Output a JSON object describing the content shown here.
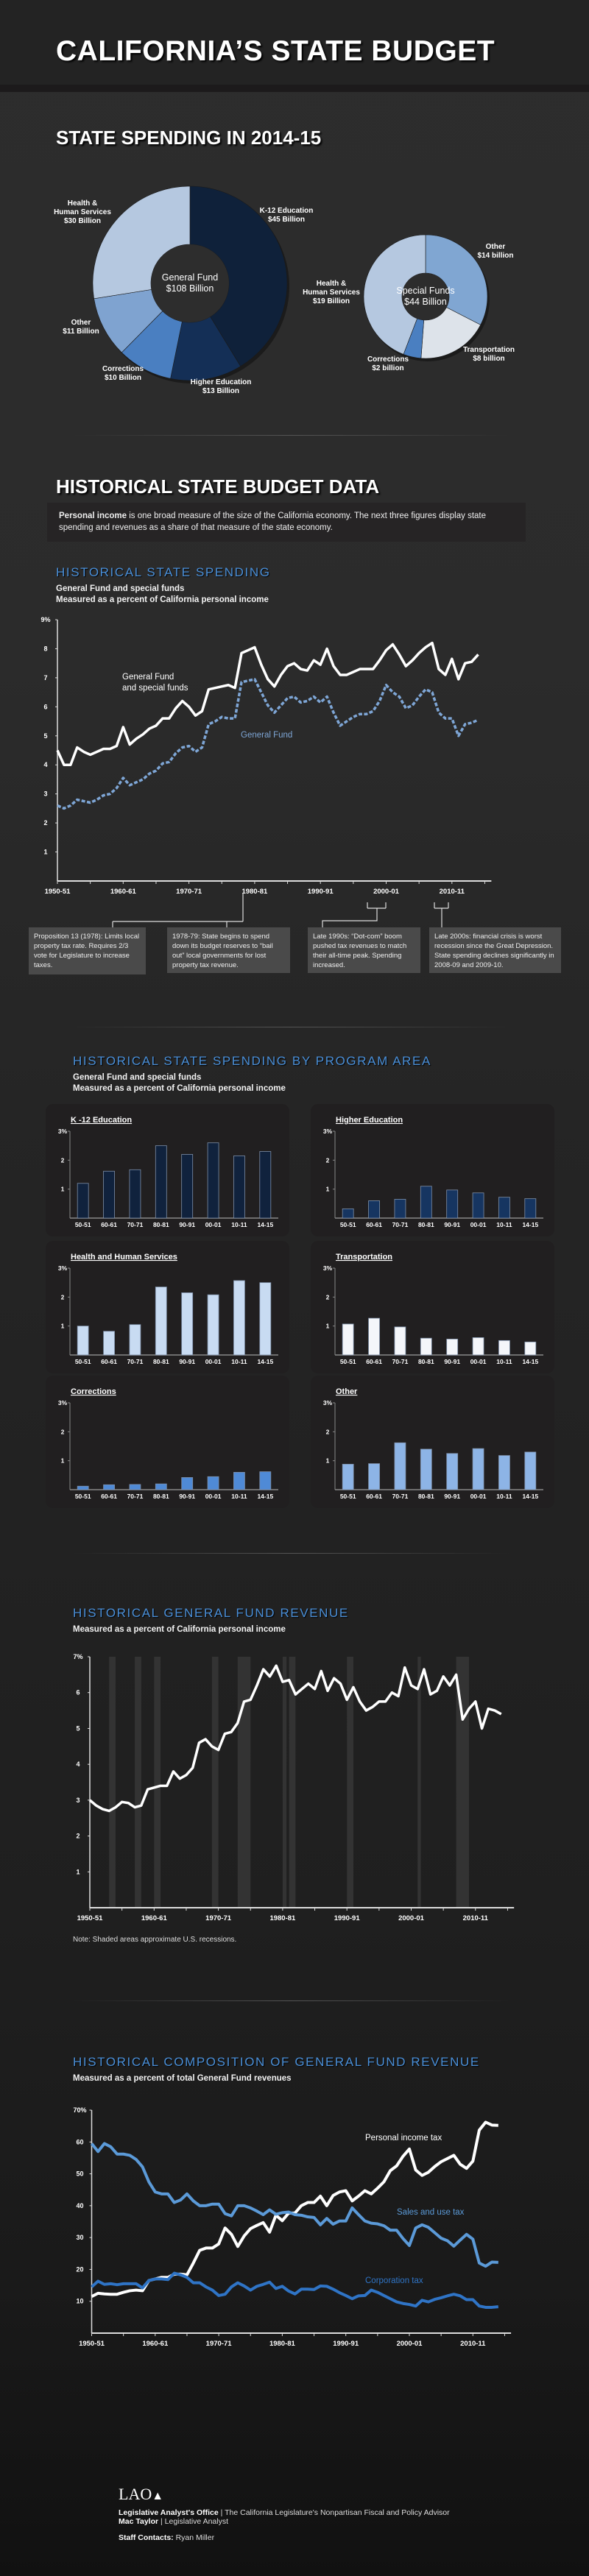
{
  "header": {
    "title": "CALIFORNIA’S STATE BUDGET"
  },
  "spending": {
    "title": "STATE SPENDING IN 2014-15"
  },
  "historical": {
    "title": "HISTORICAL STATE BUDGET DATA",
    "intro_bold": "Personal income",
    "intro_rest": " is one broad measure of the size of the California economy. The next three figures display state spending and revenues as a share of that measure of the state economy."
  },
  "hist_spending": {
    "title": "HISTORICAL STATE SPENDING",
    "subtitle1": "General Fund and special funds",
    "subtitle2": "Measured as a percent of California personal income"
  },
  "annotations": [
    "Proposition 13 (1978): Limits local property tax rate. Requires 2/3 vote for Legislature to increase taxes.",
    "1978-79: State begins to spend down its budget reserves to “bail out” local governments for lost property tax revenue.",
    "Late 1990s: “Dot-com” boom pushed tax revenues to match their all-time peak. Spending increased.",
    "Late 2000s: financial crisis is worst recession since the Great Depression. State spending declines significantly in 2008-09 and 2009-10."
  ],
  "program": {
    "title": "HISTORICAL STATE SPENDING BY PROGRAM AREA",
    "subtitle1": "General Fund and special funds",
    "subtitle2": "Measured as a percent of California personal income"
  },
  "revenue": {
    "title": "HISTORICAL GENERAL FUND REVENUE",
    "subtitle": "Measured as a percent of California personal income",
    "note": "Note: Shaded areas approximate U.S. recessions."
  },
  "composition": {
    "title": "HISTORICAL COMPOSITION OF GENERAL FUND REVENUE",
    "subtitle": "Measured as a percent of total General Fund revenues"
  },
  "footer": {
    "logo": "LAO",
    "org": "Legislative Analyst's Office",
    "org_desc": " | The California Legislature's Nonpartisan Fiscal and Policy Advisor",
    "analyst": "Mac Taylor",
    "analyst_role": " | Legislative Analyst",
    "staff_label": "Staff Contacts:",
    "staff_name": " Ryan Miller"
  },
  "chart_data": [
    {
      "type": "pie",
      "center_label": [
        "General Fund",
        "$108 Billion"
      ],
      "slices": [
        {
          "label": "K-12 Education",
          "value_label": "$45 Billion",
          "value": 45,
          "color": "#0f213a"
        },
        {
          "label": "Higher Education",
          "value_label": "$13 Billion",
          "value": 13,
          "color": "#142f56"
        },
        {
          "label": "Corrections",
          "value_label": "$10 Billion",
          "value": 10,
          "color": "#4a7fc1"
        },
        {
          "label": "Other",
          "value_label": "$11 Billion",
          "value": 11,
          "color": "#7fa3d0"
        },
        {
          "label": "Health & Human Services",
          "value_label": "$30 Billion",
          "value": 30,
          "color": "#b5c8e0"
        }
      ]
    },
    {
      "type": "pie",
      "center_label": [
        "Special Funds",
        "$44 Billion"
      ],
      "slices": [
        {
          "label": "Other",
          "value_label": "$14 billion",
          "value": 14,
          "color": "#80a6d2"
        },
        {
          "label": "Transportation",
          "value_label": "$8 billion",
          "value": 8,
          "color": "#dde3ea"
        },
        {
          "label": "Corrections",
          "value_label": "$2 billion",
          "value": 2,
          "color": "#4a7fc1"
        },
        {
          "label": "Health & Human Services",
          "value_label": "$19 Billion",
          "value": 19,
          "color": "#b5c8e0"
        }
      ]
    },
    {
      "type": "line",
      "ylim": [
        0,
        9
      ],
      "yticks": [
        "1",
        "2",
        "3",
        "4",
        "5",
        "6",
        "7",
        "8",
        "9%"
      ],
      "xticks": [
        "1950-51",
        "1960-61",
        "1970-71",
        "1980-81",
        "1990-91",
        "2000-01",
        "2010-11"
      ],
      "x": [
        1950,
        1951,
        1952,
        1953,
        1954,
        1955,
        1956,
        1957,
        1958,
        1959,
        1960,
        1961,
        1962,
        1963,
        1964,
        1965,
        1966,
        1967,
        1968,
        1969,
        1970,
        1971,
        1972,
        1973,
        1974,
        1975,
        1976,
        1977,
        1978,
        1979,
        1980,
        1981,
        1982,
        1983,
        1984,
        1985,
        1986,
        1987,
        1988,
        1989,
        1990,
        1991,
        1992,
        1993,
        1994,
        1995,
        1996,
        1997,
        1998,
        1999,
        2000,
        2001,
        2002,
        2003,
        2004,
        2005,
        2006,
        2007,
        2008,
        2009,
        2010,
        2011,
        2012,
        2013,
        2014
      ],
      "series": [
        {
          "name": "General Fund and special funds",
          "color": "#ffffff",
          "values": [
            4.5,
            4.0,
            4.0,
            4.6,
            4.45,
            4.35,
            4.45,
            4.55,
            4.55,
            4.65,
            5.3,
            4.7,
            4.9,
            5.05,
            5.25,
            5.35,
            5.6,
            5.6,
            5.95,
            6.2,
            6.0,
            5.7,
            5.85,
            6.6,
            6.65,
            6.7,
            6.75,
            6.65,
            7.85,
            7.95,
            8.05,
            7.45,
            6.95,
            6.7,
            7.1,
            7.4,
            7.5,
            7.3,
            7.25,
            7.6,
            7.45,
            8.0,
            7.4,
            7.1,
            7.1,
            7.2,
            7.3,
            7.3,
            7.3,
            7.6,
            7.95,
            8.15,
            7.8,
            7.4,
            7.6,
            7.85,
            8.05,
            8.2,
            7.3,
            7.1,
            7.65,
            6.95,
            7.5,
            7.55,
            7.8
          ]
        },
        {
          "name": "General Fund",
          "color": "#7ea6d6",
          "values": [
            2.6,
            2.5,
            2.6,
            2.8,
            2.75,
            2.7,
            2.8,
            2.95,
            3.0,
            3.2,
            3.55,
            3.3,
            3.4,
            3.5,
            3.7,
            3.8,
            4.05,
            4.1,
            4.4,
            4.6,
            4.65,
            4.45,
            4.6,
            5.4,
            5.5,
            5.65,
            5.6,
            5.6,
            6.85,
            6.9,
            6.95,
            6.5,
            6.05,
            5.8,
            6.05,
            6.3,
            6.35,
            6.15,
            6.2,
            6.35,
            6.15,
            6.35,
            5.8,
            5.35,
            5.5,
            5.65,
            5.75,
            5.75,
            5.85,
            6.2,
            6.75,
            6.5,
            6.35,
            5.95,
            6.05,
            6.35,
            6.6,
            6.5,
            5.8,
            5.6,
            5.6,
            5.0,
            5.4,
            5.45,
            5.55
          ]
        }
      ]
    },
    {
      "type": "bar",
      "title": "K -12 Education",
      "color": "#10223d",
      "ylim": [
        0,
        3
      ],
      "yticks": [
        "1",
        "2",
        "3%"
      ],
      "categories": [
        "50-51",
        "60-61",
        "70-71",
        "80-81",
        "90-91",
        "00-01",
        "10-11",
        "14-15"
      ],
      "values": [
        1.2,
        1.62,
        1.67,
        2.5,
        2.2,
        2.6,
        2.15,
        2.3
      ]
    },
    {
      "type": "bar",
      "title": "Higher Education",
      "color": "#163561",
      "ylim": [
        0,
        3
      ],
      "yticks": [
        "1",
        "2",
        "3%"
      ],
      "categories": [
        "50-51",
        "60-61",
        "70-71",
        "80-81",
        "90-91",
        "00-01",
        "10-11",
        "14-15"
      ],
      "values": [
        0.32,
        0.6,
        0.65,
        1.1,
        0.97,
        0.87,
        0.72,
        0.67
      ]
    },
    {
      "type": "bar",
      "title": "Health and Human Services",
      "color": "#c8dbf2",
      "ylim": [
        0,
        3
      ],
      "yticks": [
        "1",
        "2",
        "3%"
      ],
      "categories": [
        "50-51",
        "60-61",
        "70-71",
        "80-81",
        "90-91",
        "00-01",
        "10-11",
        "14-15"
      ],
      "values": [
        1.0,
        0.82,
        1.05,
        2.35,
        2.15,
        2.08,
        2.57,
        2.5
      ]
    },
    {
      "type": "bar",
      "title": "Transportation",
      "color": "#f4f6fa",
      "ylim": [
        0,
        3
      ],
      "yticks": [
        "1",
        "2",
        "3%"
      ],
      "categories": [
        "50-51",
        "60-61",
        "70-71",
        "80-81",
        "90-91",
        "00-01",
        "10-11",
        "14-15"
      ],
      "values": [
        1.07,
        1.27,
        0.97,
        0.58,
        0.55,
        0.6,
        0.5,
        0.45
      ]
    },
    {
      "type": "bar",
      "title": "Corrections",
      "color": "#4f8ad6",
      "ylim": [
        0,
        3
      ],
      "yticks": [
        "1",
        "2",
        "3%"
      ],
      "categories": [
        "50-51",
        "60-61",
        "70-71",
        "80-81",
        "90-91",
        "00-01",
        "10-11",
        "14-15"
      ],
      "values": [
        0.12,
        0.17,
        0.18,
        0.2,
        0.42,
        0.45,
        0.6,
        0.62
      ]
    },
    {
      "type": "bar",
      "title": "Other",
      "color": "#8db4e6",
      "ylim": [
        0,
        3
      ],
      "yticks": [
        "1",
        "2",
        "3%"
      ],
      "categories": [
        "50-51",
        "60-61",
        "70-71",
        "80-81",
        "90-91",
        "00-01",
        "10-11",
        "14-15"
      ],
      "values": [
        0.88,
        0.9,
        1.62,
        1.4,
        1.25,
        1.42,
        1.18,
        1.3
      ]
    },
    {
      "type": "line",
      "ylim": [
        0,
        7
      ],
      "yticks": [
        "1",
        "2",
        "3",
        "4",
        "5",
        "6",
        "7%"
      ],
      "xticks": [
        "1950-51",
        "1960-61",
        "1970-71",
        "1980-81",
        "1990-91",
        "2000-01",
        "2010-11"
      ],
      "recessions": [
        [
          1953,
          1954
        ],
        [
          1957,
          1958
        ],
        [
          1960,
          1961
        ],
        [
          1969,
          1970
        ],
        [
          1973,
          1975
        ],
        [
          1980,
          1980.6
        ],
        [
          1981,
          1982
        ],
        [
          1990,
          1991
        ],
        [
          2001,
          2001.5
        ],
        [
          2007,
          2009
        ]
      ],
      "x": [
        1950,
        1951,
        1952,
        1953,
        1954,
        1955,
        1956,
        1957,
        1958,
        1959,
        1960,
        1961,
        1962,
        1963,
        1964,
        1965,
        1966,
        1967,
        1968,
        1969,
        1970,
        1971,
        1972,
        1973,
        1974,
        1975,
        1976,
        1977,
        1978,
        1979,
        1980,
        1981,
        1982,
        1983,
        1984,
        1985,
        1986,
        1987,
        1988,
        1989,
        1990,
        1991,
        1992,
        1993,
        1994,
        1995,
        1996,
        1997,
        1998,
        1999,
        2000,
        2001,
        2002,
        2003,
        2004,
        2005,
        2006,
        2007,
        2008,
        2009,
        2010,
        2011,
        2012,
        2013,
        2014
      ],
      "series": [
        {
          "color": "#ffffff",
          "values": [
            3.0,
            2.85,
            2.75,
            2.7,
            2.8,
            2.95,
            2.92,
            2.8,
            2.85,
            3.3,
            3.35,
            3.4,
            3.4,
            3.8,
            3.6,
            3.7,
            3.9,
            4.6,
            4.7,
            4.5,
            4.4,
            4.85,
            4.9,
            5.15,
            5.75,
            5.8,
            6.2,
            6.65,
            6.45,
            6.75,
            6.3,
            6.35,
            5.95,
            6.1,
            6.25,
            6.1,
            6.6,
            6.05,
            6.4,
            6.25,
            5.8,
            6.15,
            5.75,
            5.5,
            5.6,
            5.75,
            5.75,
            6.0,
            5.9,
            6.7,
            6.2,
            6.1,
            6.65,
            5.95,
            6.05,
            6.45,
            6.2,
            6.5,
            5.25,
            5.55,
            5.75,
            5.0,
            5.55,
            5.5,
            5.4
          ]
        }
      ]
    },
    {
      "type": "line",
      "ylim": [
        0,
        70
      ],
      "yticks": [
        "10",
        "20",
        "30",
        "40",
        "50",
        "60",
        "70%"
      ],
      "xticks": [
        "1950-51",
        "1960-61",
        "1970-71",
        "1980-81",
        "1990-91",
        "2000-01",
        "2010-11"
      ],
      "x": [
        1950,
        1951,
        1952,
        1953,
        1954,
        1955,
        1956,
        1957,
        1958,
        1959,
        1960,
        1961,
        1962,
        1963,
        1964,
        1965,
        1966,
        1967,
        1968,
        1969,
        1970,
        1971,
        1972,
        1973,
        1974,
        1975,
        1976,
        1977,
        1978,
        1979,
        1980,
        1981,
        1982,
        1983,
        1984,
        1985,
        1986,
        1987,
        1988,
        1989,
        1990,
        1991,
        1992,
        1993,
        1994,
        1995,
        1996,
        1997,
        1998,
        1999,
        2000,
        2001,
        2002,
        2003,
        2004,
        2005,
        2006,
        2007,
        2008,
        2009,
        2010,
        2011,
        2012,
        2013,
        2014
      ],
      "series": [
        {
          "name": "Personal income tax",
          "color": "#ffffff",
          "values": [
            11.5,
            12.5,
            12.3,
            12.2,
            12.2,
            12.8,
            13.3,
            13.5,
            13.3,
            16.5,
            17,
            17.5,
            17.5,
            18.5,
            18.5,
            18.3,
            22,
            26,
            26.7,
            26.7,
            28,
            33,
            31,
            27.2,
            30.5,
            32.8,
            33.8,
            34.7,
            31.7,
            37,
            35.3,
            37.7,
            37.7,
            40,
            41,
            41,
            43,
            40,
            43.2,
            44.3,
            44.7,
            41.5,
            43,
            44.7,
            43.7,
            45.5,
            47.5,
            51,
            52.5,
            55.5,
            57.8,
            51.2,
            49.5,
            50.5,
            52.3,
            53.8,
            54.8,
            55.8,
            53,
            51.7,
            54,
            63.7,
            66.2,
            65.3,
            65.2
          ]
        },
        {
          "name": "Sales and use tax",
          "color": "#5b9ad8",
          "values": [
            59.5,
            57,
            59.5,
            58.5,
            56.2,
            56.2,
            55.8,
            54.5,
            52.2,
            47.5,
            44.3,
            43.7,
            43.7,
            41,
            41.8,
            43.7,
            41.5,
            40,
            40,
            40.5,
            40.5,
            37.5,
            36.8,
            40,
            40,
            39.3,
            38.3,
            37.2,
            38.7,
            37.3,
            37.8,
            38,
            37.2,
            37,
            36.5,
            36.3,
            34,
            36,
            34.2,
            35.2,
            35.2,
            39.3,
            37.2,
            35.2,
            34.5,
            34.3,
            33.7,
            32.3,
            32.3,
            29.7,
            27.5,
            33,
            34,
            33.2,
            31.5,
            29.8,
            29,
            27.3,
            29.2,
            31,
            29.5,
            22,
            21,
            22.3,
            22.2
          ]
        },
        {
          "name": "Corporation tax",
          "color": "#2f74c6",
          "values": [
            14.5,
            16.3,
            15.3,
            15.5,
            15.2,
            15.5,
            15.5,
            15.5,
            14.2,
            16.5,
            17,
            17,
            16.8,
            18.8,
            18.3,
            17.5,
            15.8,
            15.8,
            14.5,
            13.5,
            11.8,
            12.2,
            14.5,
            15.8,
            14.8,
            13.5,
            14.7,
            15.3,
            16,
            14,
            14.7,
            13.2,
            12.3,
            13.8,
            13.8,
            13.7,
            14.8,
            14.7,
            13.8,
            12.7,
            11.8,
            10.8,
            11.7,
            11.8,
            13.5,
            12.8,
            11.8,
            10.8,
            9.8,
            9.3,
            9,
            8.5,
            10.3,
            9.8,
            10.6,
            11.1,
            11.7,
            12.2,
            11.7,
            10.5,
            10.5,
            8.5,
            8.1,
            8.1,
            8.3
          ]
        }
      ]
    }
  ]
}
